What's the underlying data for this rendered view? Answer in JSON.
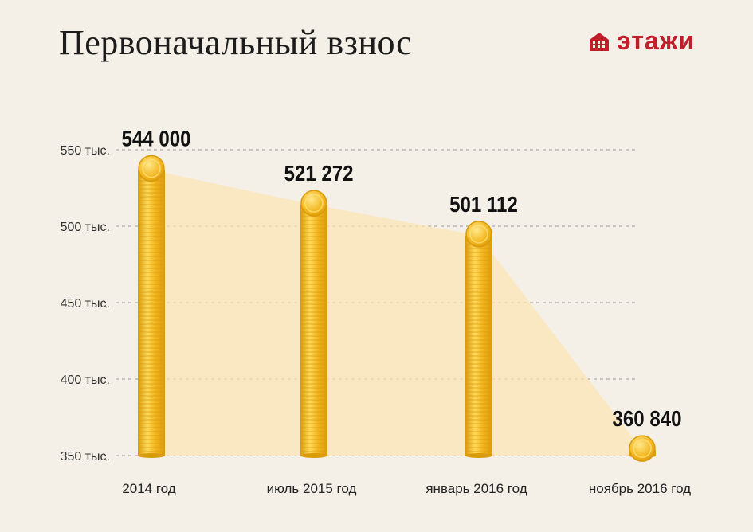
{
  "title": "Первоначальный взнос",
  "logo": {
    "text": "этажи",
    "color": "#c21d2b"
  },
  "chart_data": {
    "type": "bar",
    "categories": [
      "2014 год",
      "июль 2015 год",
      "январь 2016 год",
      "ноябрь 2016 год"
    ],
    "values": [
      544000,
      521272,
      501112,
      360840
    ],
    "value_labels": [
      "544 000",
      "521 272",
      "501 112",
      "360 840"
    ],
    "yticks": [
      550000,
      500000,
      450000,
      400000,
      350000
    ],
    "ytick_labels": [
      "550 тыс.",
      "500 тыс.",
      "450 тыс.",
      "400 тыс.",
      "350 тыс."
    ],
    "ylim": [
      350000,
      550000
    ],
    "grid": true,
    "bar_style": "stacked-coins",
    "colors": {
      "coin": "#f2b51c",
      "coin_dark": "#d99a0c",
      "coin_light": "#ffd95a",
      "trend_fill": "#fbe6b4"
    }
  }
}
